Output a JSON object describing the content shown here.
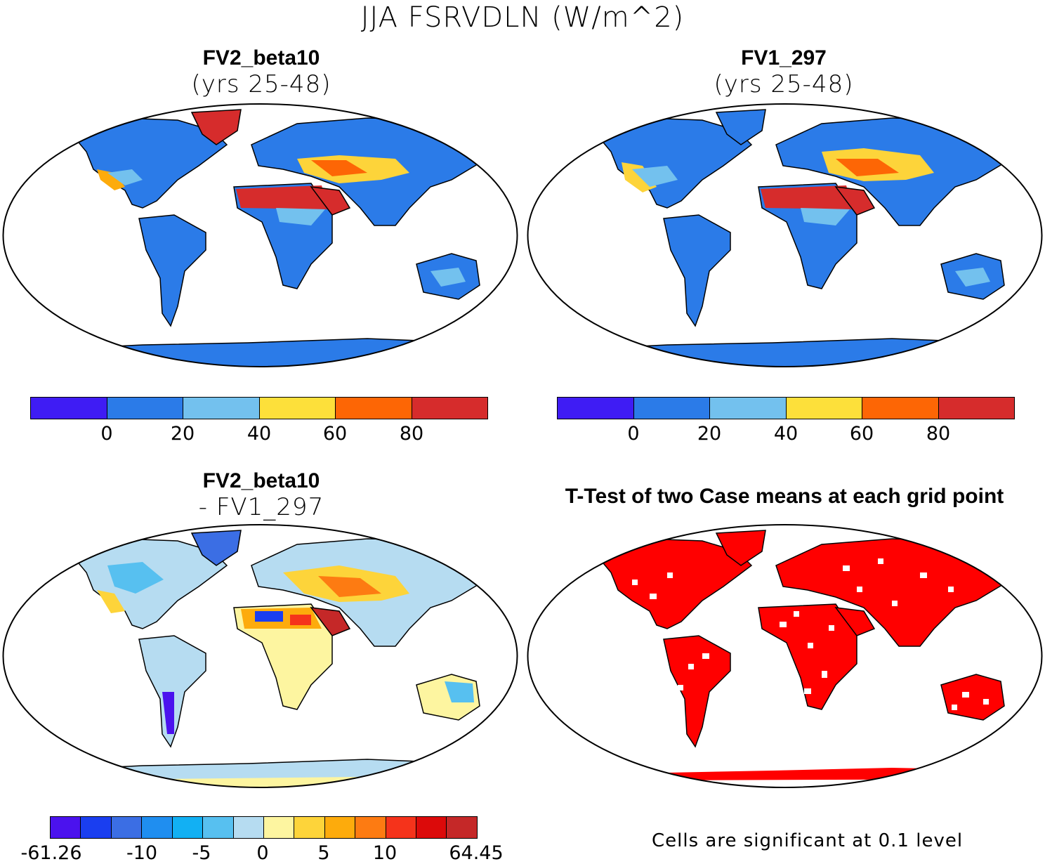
{
  "title": "JJA FSRVDLN (W/m^2)",
  "panels": {
    "top_left": {
      "title": "FV2_beta10",
      "subtitle": "(yrs 25-48)"
    },
    "top_right": {
      "title": "FV1_297",
      "subtitle": "(yrs 25-48)"
    },
    "bottom_left": {
      "title": "FV2_beta10",
      "subtitle": "- FV1_297"
    },
    "bottom_right": {
      "title": "T-Test of two Case means at each grid point",
      "note": "Cells are significant at 0.1 level"
    }
  },
  "colorbars": {
    "field": {
      "colors": [
        "#3f1cf4",
        "#2b7be8",
        "#73c1ee",
        "#fde03a",
        "#fd6605",
        "#d62c2c"
      ],
      "labels": [
        "0",
        "20",
        "40",
        "60",
        "80"
      ]
    },
    "diff": {
      "colors": [
        "#4b12ee",
        "#1a3ef0",
        "#3b6ee4",
        "#1f8ef0",
        "#12b0f3",
        "#57c0f0",
        "#b6dcf1",
        "#fdf5a0",
        "#fdd43a",
        "#fdab0c",
        "#fd7b12",
        "#f5331b",
        "#dc0a0a",
        "#c52828"
      ],
      "labels": [
        "-61.26",
        "-10",
        "-5",
        "0",
        "5",
        "10",
        "64.45"
      ]
    }
  }
}
